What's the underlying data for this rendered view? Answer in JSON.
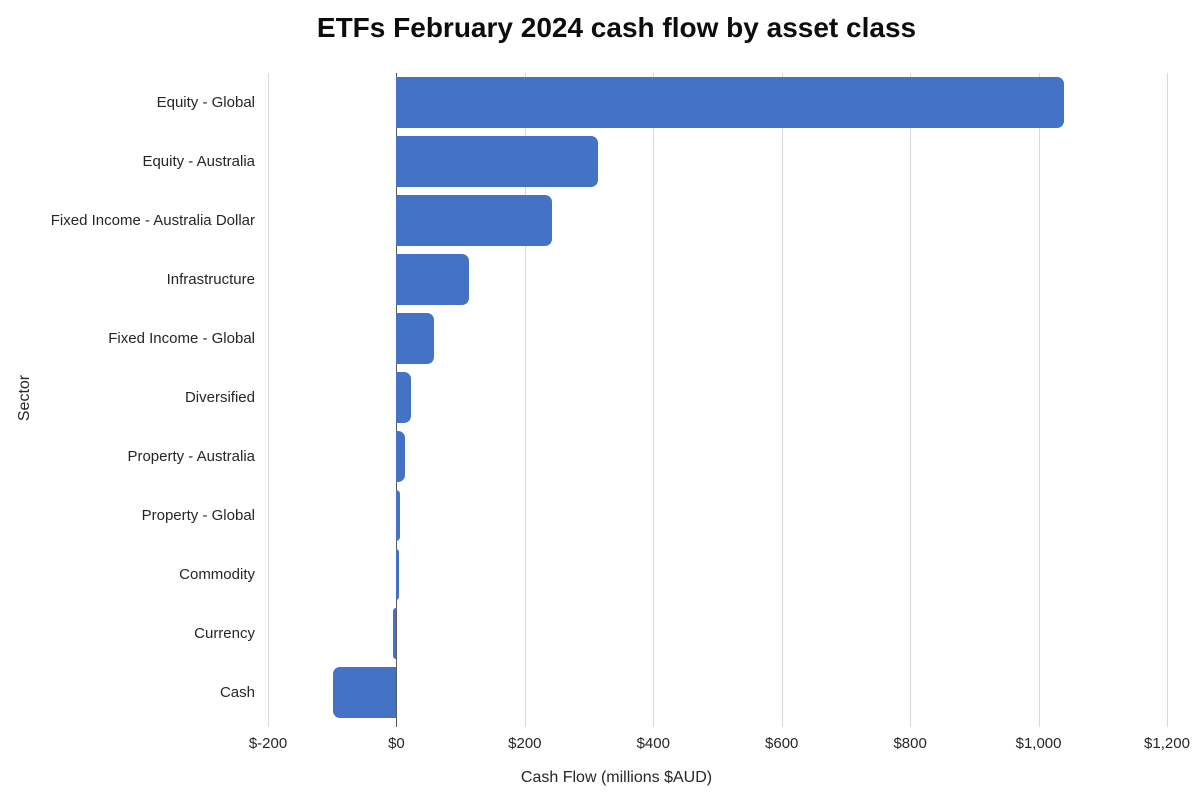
{
  "chart_data": {
    "type": "bar",
    "orientation": "horizontal",
    "title": "ETFs February 2024 cash flow by asset class",
    "xlabel": "Cash Flow (millions $AUD)",
    "ylabel": "Sector",
    "categories": [
      "Equity - Global",
      "Equity - Australia",
      "Fixed Income - Australia Dollar",
      "Infrastructure",
      "Fixed Income - Global",
      "Diversified",
      "Property - Australia",
      "Property - Global",
      "Commodity",
      "Currency",
      "Cash"
    ],
    "values": [
      1040,
      314,
      243,
      113,
      58,
      23,
      13,
      6,
      4,
      -5,
      -99
    ],
    "xlim": [
      -200,
      1200
    ],
    "xticks": [
      -200,
      0,
      200,
      400,
      600,
      800,
      1000,
      1200
    ],
    "xtick_labels": [
      "$-200",
      "$0",
      "$200",
      "$400",
      "$600",
      "$800",
      "$1,000",
      "$1,200"
    ],
    "grid": true,
    "legend": false,
    "bar_color": "#4472C4",
    "gridline_color": "#D9D9D9",
    "zero_line_color": "#595959",
    "text_color": "#262626",
    "title_color": "#0d0d0d"
  }
}
